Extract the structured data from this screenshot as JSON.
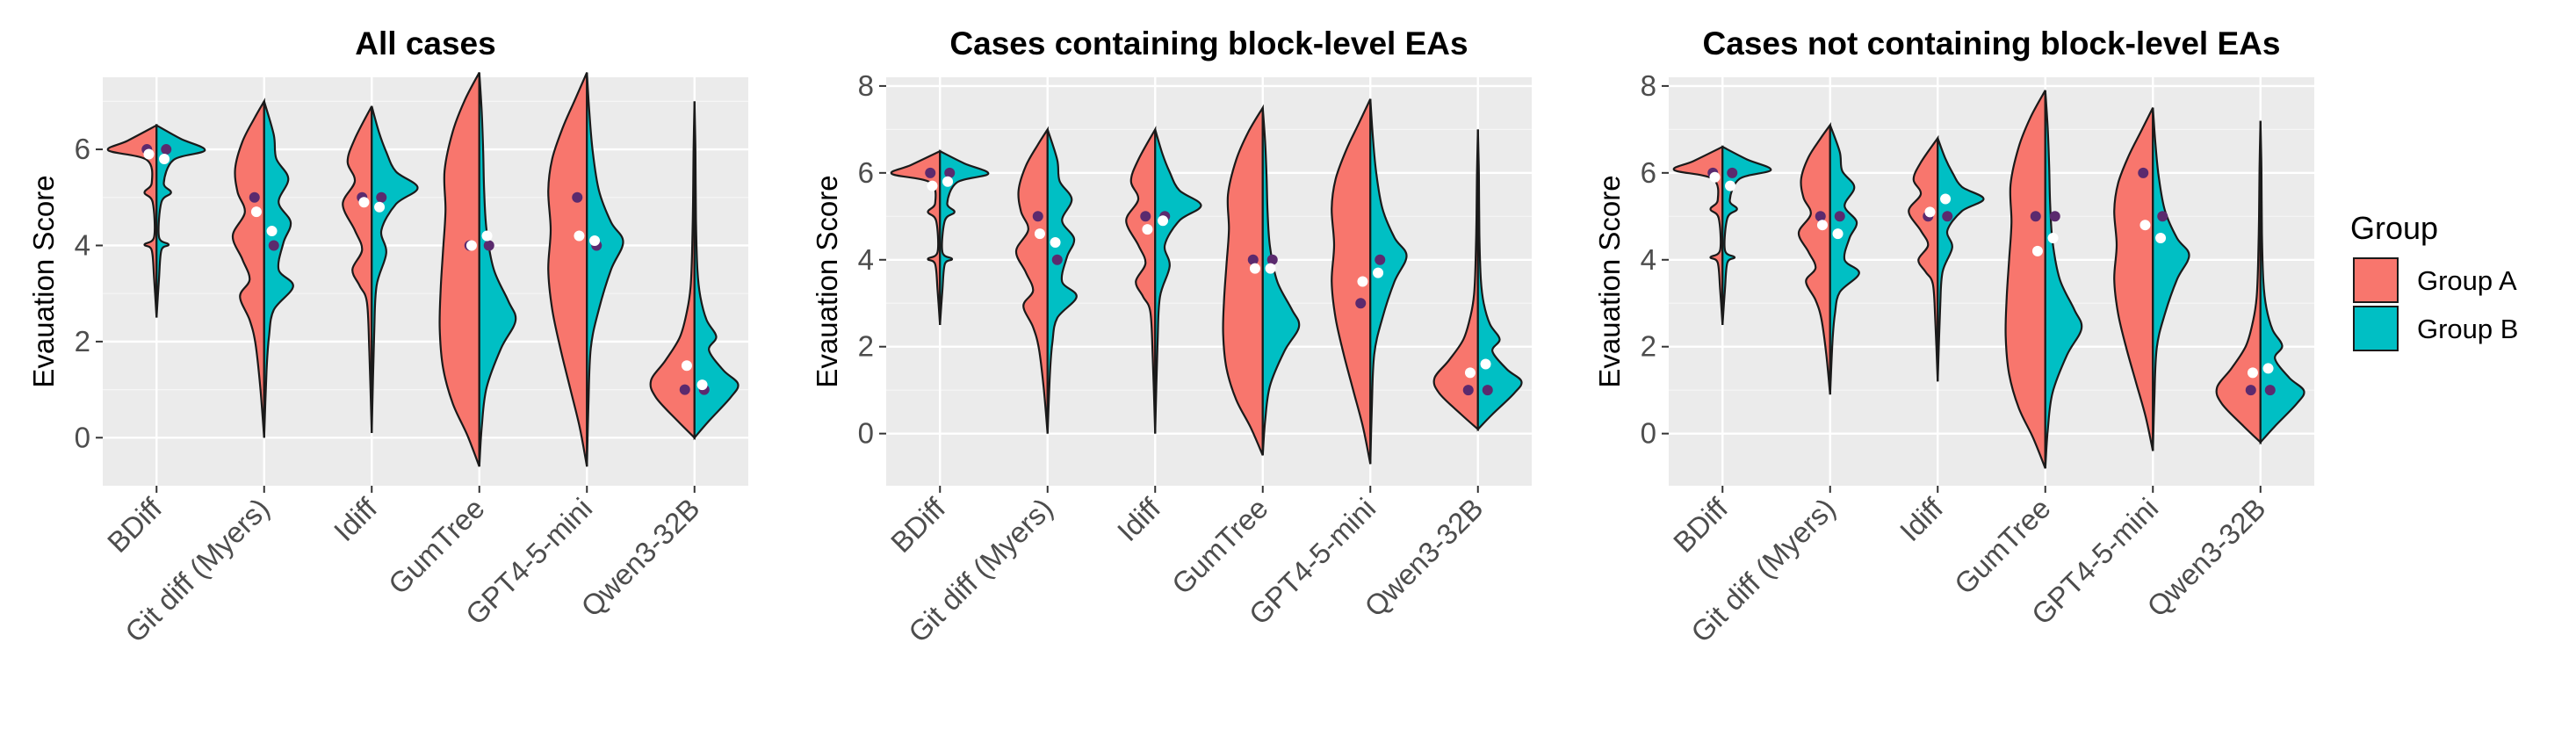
{
  "colors": {
    "group_a": "#F8766D",
    "group_b": "#00BFC4",
    "median_point": "#5b2a6e",
    "mean_point": "#ffffff"
  },
  "legend": {
    "title": "Group",
    "items": [
      "Group A",
      "Group B"
    ]
  },
  "chart_data": [
    {
      "type": "split-violin",
      "title": "All cases",
      "xlabel": "",
      "ylabel": "Evauation Score",
      "ylim": [
        -1,
        7.5
      ],
      "yticks": [
        0,
        2,
        4,
        6
      ],
      "categories": [
        "BDiff",
        "Git diff (Myers)",
        "Idiff",
        "GumTree",
        "GPT4-5-mini",
        "Qwen3-32B"
      ],
      "series": [
        {
          "name": "Group A",
          "range": [
            [
              2.5,
              6.5
            ],
            [
              0,
              7
            ],
            [
              0.1,
              6.9
            ],
            [
              -0.6,
              7.6
            ],
            [
              -0.6,
              7.6
            ],
            [
              0,
              7
            ]
          ],
          "medians": [
            6,
            5,
            5,
            4,
            5,
            1
          ],
          "means": [
            5.9,
            4.7,
            4.9,
            4.0,
            4.2,
            1.5
          ]
        },
        {
          "name": "Group B",
          "range": [
            [
              2.5,
              6.5
            ],
            [
              0,
              7
            ],
            [
              0.1,
              6.9
            ],
            [
              -0.6,
              7.6
            ],
            [
              -0.6,
              7.6
            ],
            [
              0,
              7
            ]
          ],
          "medians": [
            6,
            4,
            5,
            4,
            4,
            1
          ],
          "means": [
            5.8,
            4.3,
            4.8,
            4.2,
            4.1,
            1.1
          ]
        }
      ]
    },
    {
      "type": "split-violin",
      "title": "Cases containing block-level EAs",
      "xlabel": "",
      "ylabel": "Evauation Score",
      "ylim": [
        -1.2,
        8.2
      ],
      "yticks": [
        0,
        2,
        4,
        6,
        8
      ],
      "categories": [
        "BDiff",
        "Git diff (Myers)",
        "Idiff",
        "GumTree",
        "GPT4-5-mini",
        "Qwen3-32B"
      ],
      "series": [
        {
          "name": "Group A",
          "range": [
            [
              2.5,
              6.5
            ],
            [
              0,
              7
            ],
            [
              0,
              7
            ],
            [
              -0.5,
              7.5
            ],
            [
              -0.7,
              7.7
            ],
            [
              0.1,
              7
            ]
          ],
          "medians": [
            6,
            5,
            5,
            4,
            3,
            1
          ],
          "means": [
            5.7,
            4.6,
            4.7,
            3.8,
            3.5,
            1.4
          ]
        },
        {
          "name": "Group B",
          "range": [
            [
              2.5,
              6.5
            ],
            [
              0,
              7
            ],
            [
              0,
              7
            ],
            [
              -0.5,
              7.5
            ],
            [
              -0.7,
              7.7
            ],
            [
              0.1,
              7
            ]
          ],
          "medians": [
            6,
            4,
            5,
            4,
            4,
            1
          ],
          "means": [
            5.8,
            4.4,
            4.9,
            3.8,
            3.7,
            1.6
          ]
        }
      ]
    },
    {
      "type": "split-violin",
      "title": "Cases not containing block-level EAs",
      "xlabel": "",
      "ylabel": "Evauation Score",
      "ylim": [
        -1.2,
        8.2
      ],
      "yticks": [
        0,
        2,
        4,
        6,
        8
      ],
      "categories": [
        "BDiff",
        "Git diff (Myers)",
        "Idiff",
        "GumTree",
        "GPT4-5-mini",
        "Qwen3-32B"
      ],
      "series": [
        {
          "name": "Group A",
          "range": [
            [
              2.5,
              6.6
            ],
            [
              0.9,
              7.1
            ],
            [
              1.2,
              6.8
            ],
            [
              -0.8,
              7.9
            ],
            [
              -0.4,
              7.5
            ],
            [
              -0.2,
              7.2
            ]
          ],
          "medians": [
            6,
            5,
            5,
            5,
            6,
            1
          ],
          "means": [
            5.9,
            4.8,
            5.1,
            4.2,
            4.8,
            1.4
          ]
        },
        {
          "name": "Group B",
          "range": [
            [
              2.5,
              6.6
            ],
            [
              0.9,
              7.1
            ],
            [
              1.2,
              6.8
            ],
            [
              -0.8,
              7.9
            ],
            [
              -0.4,
              7.5
            ],
            [
              -0.2,
              7.2
            ]
          ],
          "medians": [
            6,
            5,
            5,
            5,
            5,
            1
          ],
          "means": [
            5.7,
            4.6,
            5.4,
            4.5,
            4.5,
            1.5
          ]
        }
      ]
    }
  ]
}
